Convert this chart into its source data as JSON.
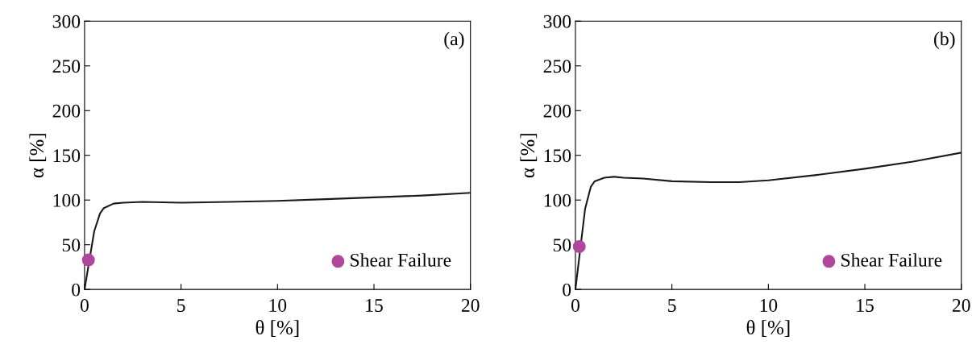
{
  "chart_data": [
    {
      "type": "line",
      "xlabel": "θ [%]",
      "ylabel": "α [%]",
      "xlim": [
        0,
        20
      ],
      "ylim": [
        0,
        300
      ],
      "xticks": [
        0,
        5,
        10,
        15,
        20
      ],
      "yticks": [
        0,
        50,
        100,
        150,
        200,
        250,
        300
      ],
      "grid": false,
      "legend": "bottom right",
      "annotations": [
        "(a)"
      ],
      "series": [
        {
          "color": "#1a1a1a",
          "x": [
            0,
            0.5,
            0.8,
            1.0,
            1.5,
            2,
            3,
            5,
            7.5,
            10,
            12.5,
            15,
            17.5,
            20
          ],
          "values": [
            0,
            65,
            85,
            91,
            96,
            97,
            98,
            97,
            98,
            99,
            101,
            103,
            105,
            108
          ]
        },
        {
          "type": "scatter",
          "name": "Shear Failure",
          "color": "#b0479c",
          "marker": "circle",
          "x": [
            0.2
          ],
          "values": [
            33
          ]
        }
      ]
    },
    {
      "type": "line",
      "xlabel": "θ [%]",
      "ylabel": "α [%]",
      "xlim": [
        0,
        20
      ],
      "ylim": [
        0,
        300
      ],
      "xticks": [
        0,
        5,
        10,
        15,
        20
      ],
      "yticks": [
        0,
        50,
        100,
        150,
        200,
        250,
        300
      ],
      "grid": false,
      "legend": "bottom right",
      "annotations": [
        "(b)"
      ],
      "series": [
        {
          "color": "#1a1a1a",
          "x": [
            0,
            0.5,
            0.8,
            1.0,
            1.5,
            2,
            2.5,
            3.5,
            5,
            7,
            8.5,
            10,
            12.5,
            15,
            17.5,
            20
          ],
          "values": [
            0,
            90,
            115,
            121,
            125,
            126,
            125,
            124,
            121,
            120,
            120,
            122,
            128,
            135,
            143,
            153
          ]
        },
        {
          "type": "scatter",
          "name": "Shear Failure",
          "color": "#b0479c",
          "marker": "circle",
          "x": [
            0.2
          ],
          "values": [
            48
          ]
        }
      ]
    }
  ]
}
